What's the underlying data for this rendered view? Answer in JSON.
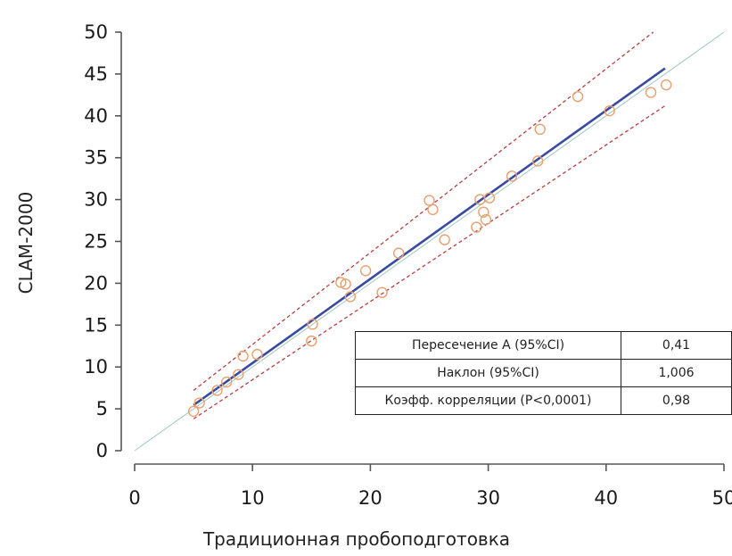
{
  "chart_data": {
    "type": "scatter",
    "xlabel": "Традиционная пробоподготовка",
    "ylabel": "CLAM-2000",
    "xlim": [
      0,
      50
    ],
    "ylim": [
      0,
      50
    ],
    "x_ticks": [
      0,
      10,
      20,
      30,
      40,
      50
    ],
    "y_ticks": [
      0,
      5,
      10,
      15,
      20,
      25,
      30,
      35,
      40,
      45,
      50
    ],
    "x_tick_labels": [
      "0",
      "10",
      "20",
      "30",
      "40",
      "50"
    ],
    "y_tick_labels": [
      "0",
      "5",
      "10",
      "15",
      "20",
      "25",
      "30",
      "35",
      "40",
      "45",
      "50"
    ],
    "grid": false,
    "points": [
      {
        "x": 5.0,
        "y": 4.7
      },
      {
        "x": 5.5,
        "y": 5.7
      },
      {
        "x": 7.0,
        "y": 7.2
      },
      {
        "x": 7.8,
        "y": 8.2
      },
      {
        "x": 8.8,
        "y": 9.1
      },
      {
        "x": 9.2,
        "y": 11.3
      },
      {
        "x": 10.4,
        "y": 11.5
      },
      {
        "x": 15.0,
        "y": 13.1
      },
      {
        "x": 15.1,
        "y": 15.1
      },
      {
        "x": 17.5,
        "y": 20.1
      },
      {
        "x": 17.9,
        "y": 19.9
      },
      {
        "x": 18.3,
        "y": 18.4
      },
      {
        "x": 19.6,
        "y": 21.5
      },
      {
        "x": 21.0,
        "y": 18.9
      },
      {
        "x": 22.4,
        "y": 23.6
      },
      {
        "x": 25.0,
        "y": 29.9
      },
      {
        "x": 25.3,
        "y": 28.8
      },
      {
        "x": 26.3,
        "y": 25.2
      },
      {
        "x": 29.0,
        "y": 26.7
      },
      {
        "x": 29.3,
        "y": 30.0
      },
      {
        "x": 29.6,
        "y": 28.5
      },
      {
        "x": 29.8,
        "y": 27.6
      },
      {
        "x": 30.1,
        "y": 30.2
      },
      {
        "x": 32.0,
        "y": 32.8
      },
      {
        "x": 34.2,
        "y": 34.6
      },
      {
        "x": 34.4,
        "y": 38.4
      },
      {
        "x": 37.6,
        "y": 42.3
      },
      {
        "x": 40.3,
        "y": 40.6
      },
      {
        "x": 43.8,
        "y": 42.8
      },
      {
        "x": 45.1,
        "y": 43.7
      }
    ],
    "regression": {
      "x": [
        5,
        45
      ],
      "y": [
        5.44,
        45.67
      ]
    },
    "ci_upper": {
      "x": [
        5,
        44
      ],
      "y": [
        7.2,
        50.0
      ]
    },
    "ci_lower": {
      "x": [
        5,
        45
      ],
      "y": [
        3.8,
        41.2
      ]
    },
    "identity": {
      "x": [
        0,
        50
      ],
      "y": [
        0,
        50
      ]
    },
    "colors": {
      "points": "#e8a070",
      "regression": "#3a4aa0",
      "ci": "#b44040",
      "identity": "#9cc7c0",
      "axis": "#555555"
    }
  },
  "stats_table": [
    {
      "label": "Пересечение A (95%CI)",
      "value": "0,41"
    },
    {
      "label": "Наклон (95%CI)",
      "value": "1,006"
    },
    {
      "label": "Коэфф. корреляции (P<0,0001)",
      "value": "0,98"
    }
  ]
}
